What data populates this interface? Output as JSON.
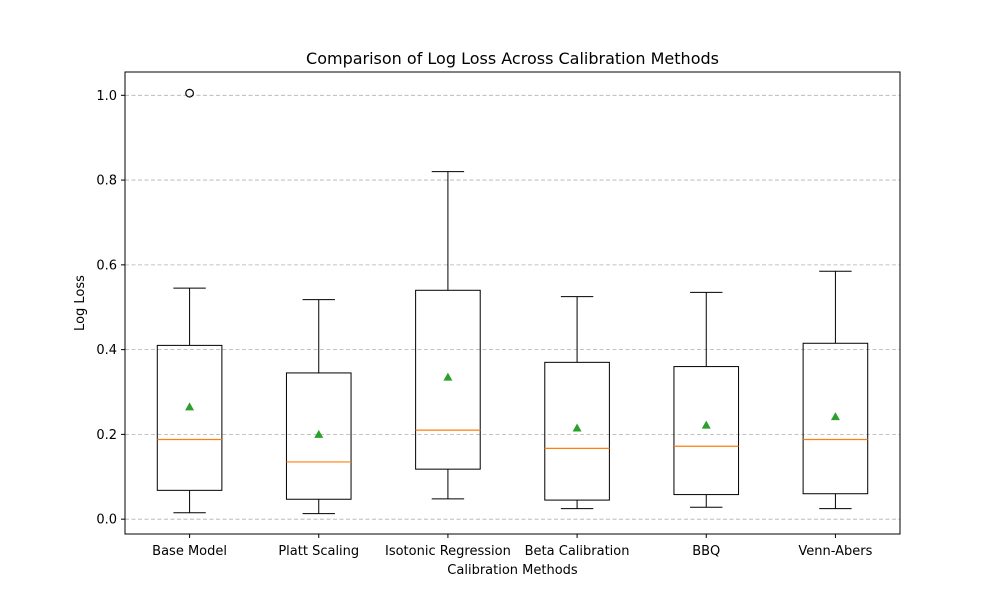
{
  "chart_data": {
    "type": "boxplot",
    "title": "Comparison of Log Loss Across Calibration Methods",
    "xlabel": "Calibration Methods",
    "ylabel": "Log Loss",
    "ylim": [
      -0.035,
      1.055
    ],
    "yticks": [
      0.0,
      0.2,
      0.4,
      0.6,
      0.8,
      1.0
    ],
    "ytick_labels": [
      "0.0",
      "0.2",
      "0.4",
      "0.6",
      "0.8",
      "1.0"
    ],
    "grid": "horizontal dashed",
    "categories": [
      "Base Model",
      "Platt Scaling",
      "Isotonic Regression",
      "Beta Calibration",
      "BBQ",
      "Venn-Abers"
    ],
    "boxes": [
      {
        "whislo": 0.015,
        "q1": 0.068,
        "med": 0.188,
        "q3": 0.41,
        "whishi": 0.545,
        "mean": 0.265,
        "fliers": [
          1.005
        ]
      },
      {
        "whislo": 0.013,
        "q1": 0.047,
        "med": 0.135,
        "q3": 0.345,
        "whishi": 0.518,
        "mean": 0.2,
        "fliers": []
      },
      {
        "whislo": 0.048,
        "q1": 0.118,
        "med": 0.21,
        "q3": 0.54,
        "whishi": 0.82,
        "mean": 0.335,
        "fliers": []
      },
      {
        "whislo": 0.025,
        "q1": 0.045,
        "med": 0.167,
        "q3": 0.37,
        "whishi": 0.525,
        "mean": 0.215,
        "fliers": []
      },
      {
        "whislo": 0.028,
        "q1": 0.058,
        "med": 0.172,
        "q3": 0.36,
        "whishi": 0.535,
        "mean": 0.222,
        "fliers": []
      },
      {
        "whislo": 0.025,
        "q1": 0.06,
        "med": 0.188,
        "q3": 0.415,
        "whishi": 0.585,
        "mean": 0.242,
        "fliers": []
      }
    ],
    "colors": {
      "box": "#000000",
      "median": "#ff7f0e",
      "mean_marker": "#2ca02c",
      "grid": "#b0b0b0"
    }
  }
}
